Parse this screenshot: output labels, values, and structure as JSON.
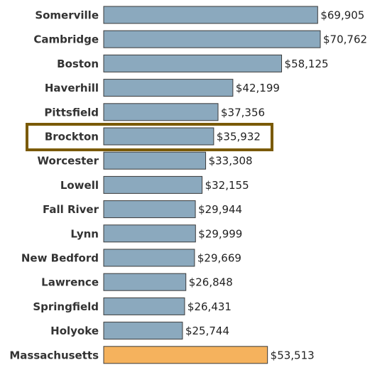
{
  "chart_data": {
    "type": "bar",
    "orientation": "horizontal",
    "categories": [
      "Somerville",
      "Cambridge",
      "Boston",
      "Haverhill",
      "Pittsfield",
      "Brockton",
      "Worcester",
      "Lowell",
      "Fall River",
      "Lynn",
      "New Bedford",
      "Lawrence",
      "Springfield",
      "Holyoke",
      "Massachusetts"
    ],
    "values": [
      69905,
      70762,
      58125,
      42199,
      37356,
      35932,
      33308,
      32155,
      29944,
      29999,
      29669,
      26848,
      26431,
      25744,
      53513
    ],
    "value_labels": [
      "$69,905",
      "$70,762",
      "$58,125",
      "$42,199",
      "$37,356",
      "$35,932",
      "$33,308",
      "$32,155",
      "$29,944",
      "$29,999",
      "$29,669",
      "$26,848",
      "$26,431",
      "$25,744",
      "$53,513"
    ],
    "colors": [
      "#8ba9be",
      "#8ba9be",
      "#8ba9be",
      "#8ba9be",
      "#8ba9be",
      "#8ba9be",
      "#8ba9be",
      "#8ba9be",
      "#8ba9be",
      "#8ba9be",
      "#8ba9be",
      "#8ba9be",
      "#8ba9be",
      "#8ba9be",
      "#f5b25d"
    ],
    "highlight_index": 5,
    "highlight_color": "#7a5a00",
    "xlim": [
      0,
      87000
    ]
  }
}
